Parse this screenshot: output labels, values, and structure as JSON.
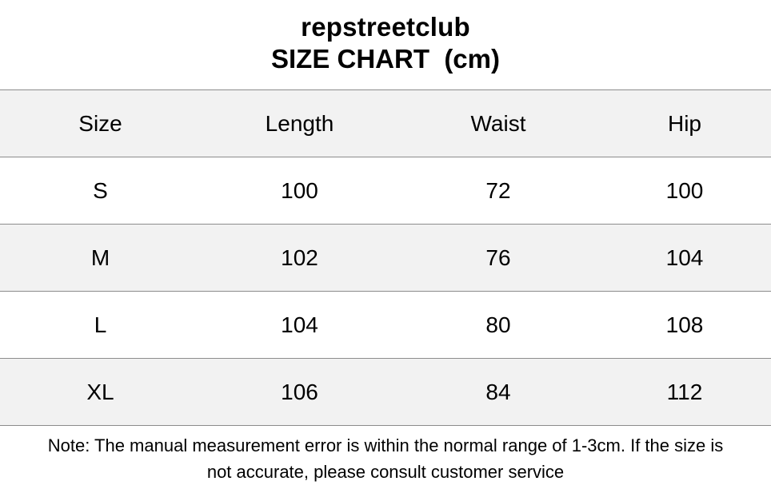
{
  "header": {
    "brand": "repstreetclub",
    "title": "SIZE CHART  (cm)"
  },
  "table": {
    "columns": [
      "Size",
      "Length",
      "Waist",
      "Hip"
    ],
    "rows": [
      [
        "S",
        "100",
        "72",
        "100"
      ],
      [
        "M",
        "102",
        "76",
        "104"
      ],
      [
        "L",
        "104",
        "80",
        "108"
      ],
      [
        "XL",
        "106",
        "84",
        "112"
      ]
    ]
  },
  "note": {
    "line1": "Note: The manual measurement error is within the normal range of 1-3cm. If the size is",
    "line2": "not accurate, please consult customer service"
  },
  "colors": {
    "stripe": "#f2f2f2",
    "border": "#8c8c8c",
    "text": "#000000"
  }
}
